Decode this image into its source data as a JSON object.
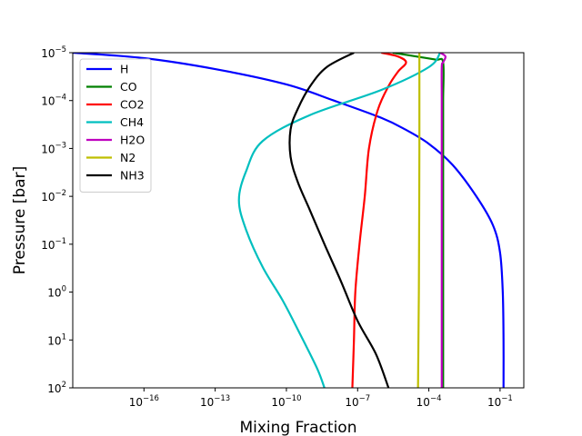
{
  "chart_data": {
    "type": "line",
    "title": "",
    "xlabel": "Mixing Fraction",
    "ylabel": "Pressure [bar]",
    "x_scale": "log",
    "y_scale": "log",
    "y_inverted": true,
    "xlim": [
      1e-19,
      1.0
    ],
    "ylim": [
      100,
      1e-05
    ],
    "x_ticks": [
      {
        "value": 1e-16,
        "base": "10",
        "exp": "−16"
      },
      {
        "value": 1e-13,
        "base": "10",
        "exp": "−13"
      },
      {
        "value": 1e-10,
        "base": "10",
        "exp": "−10"
      },
      {
        "value": 1e-07,
        "base": "10",
        "exp": "−7"
      },
      {
        "value": 0.0001,
        "base": "10",
        "exp": "−4"
      },
      {
        "value": 0.1,
        "base": "10",
        "exp": "−1"
      }
    ],
    "y_ticks": [
      {
        "value": 1e-05,
        "base": "10",
        "exp": "−5"
      },
      {
        "value": 0.0001,
        "base": "10",
        "exp": "−4"
      },
      {
        "value": 0.001,
        "base": "10",
        "exp": "−3"
      },
      {
        "value": 0.01,
        "base": "10",
        "exp": "−2"
      },
      {
        "value": 0.1,
        "base": "10",
        "exp": "−1"
      },
      {
        "value": 1,
        "base": "10",
        "exp": "0"
      },
      {
        "value": 10,
        "base": "10",
        "exp": "1"
      },
      {
        "value": 100,
        "base": "10",
        "exp": "2"
      }
    ],
    "legend_position": "top-left",
    "grid": false,
    "series": [
      {
        "name": "H",
        "color": "#0000ff",
        "points": [
          [
            1e-19,
            1e-05
          ],
          [
            1e-16,
            1.3e-05
          ],
          [
            1e-13,
            2.2e-05
          ],
          [
            1e-10,
            4.6e-05
          ],
          [
            1e-08,
            0.0001
          ],
          [
            1e-06,
            0.00023
          ],
          [
            1e-05,
            0.0004
          ],
          [
            0.0001,
            0.0008
          ],
          [
            0.001,
            0.0022
          ],
          [
            0.01,
            0.01
          ],
          [
            0.05,
            0.04
          ],
          [
            0.1,
            0.15
          ],
          [
            0.13,
            1
          ],
          [
            0.14,
            10
          ],
          [
            0.14,
            100
          ]
        ]
      },
      {
        "name": "CO",
        "color": "#008000",
        "points": [
          [
            3e-06,
            1e-05
          ],
          [
            3e-05,
            1.2e-05
          ],
          [
            0.0002,
            1.4e-05
          ],
          [
            0.0004,
            1.6e-05
          ],
          [
            0.0004,
            0.0001
          ],
          [
            0.0004,
            0.001
          ],
          [
            0.0004,
            1
          ],
          [
            0.0004,
            100
          ]
        ]
      },
      {
        "name": "CO2",
        "color": "#ff0000",
        "points": [
          [
            1e-06,
            1e-05
          ],
          [
            5e-06,
            1.2e-05
          ],
          [
            1.1e-05,
            1.6e-05
          ],
          [
            5e-06,
            2.5e-05
          ],
          [
            2e-06,
            5e-05
          ],
          [
            7e-07,
            0.00016
          ],
          [
            3e-07,
            0.001
          ],
          [
            2e-07,
            0.01
          ],
          [
            1.2e-07,
            0.1
          ],
          [
            8e-08,
            1
          ],
          [
            7e-08,
            10
          ],
          [
            6e-08,
            100
          ]
        ]
      },
      {
        "name": "CH4",
        "color": "#00bfbf",
        "points": [
          [
            0.0003,
            1e-05
          ],
          [
            0.0001,
            2e-05
          ],
          [
            1e-06,
            6e-05
          ],
          [
            1e-09,
            0.0002
          ],
          [
            1e-11,
            0.0007
          ],
          [
            2e-12,
            0.003
          ],
          [
            1e-12,
            0.012
          ],
          [
            2e-12,
            0.05
          ],
          [
            1e-11,
            0.3
          ],
          [
            7e-11,
            1.5
          ],
          [
            4e-10,
            8
          ],
          [
            2e-09,
            40
          ],
          [
            4e-09,
            100
          ]
        ]
      },
      {
        "name": "H2O",
        "color": "#bf00bf",
        "points": [
          [
            0.0003,
            1e-05
          ],
          [
            0.0005,
            1.2e-05
          ],
          [
            0.0004,
            1.6e-05
          ],
          [
            0.00035,
            2e-05
          ],
          [
            0.00035,
            0.0001
          ],
          [
            0.00035,
            0.001
          ],
          [
            0.00035,
            1
          ],
          [
            0.00035,
            100
          ]
        ]
      },
      {
        "name": "N2",
        "color": "#bfbf00",
        "points": [
          [
            4e-05,
            1e-05
          ],
          [
            4e-05,
            0.001
          ],
          [
            3.8e-05,
            1
          ],
          [
            3.5e-05,
            100
          ]
        ]
      },
      {
        "name": "NH3",
        "color": "#000000",
        "points": [
          [
            7e-08,
            1e-05
          ],
          [
            5e-09,
            2e-05
          ],
          [
            1e-09,
            5e-05
          ],
          [
            3e-10,
            0.00015
          ],
          [
            1.5e-10,
            0.0004
          ],
          [
            1.5e-10,
            0.0015
          ],
          [
            3e-10,
            0.005
          ],
          [
            1e-09,
            0.02
          ],
          [
            4e-09,
            0.1
          ],
          [
            2e-08,
            0.6
          ],
          [
            1e-07,
            4
          ],
          [
            6e-07,
            20
          ],
          [
            2e-06,
            100
          ]
        ]
      }
    ]
  }
}
